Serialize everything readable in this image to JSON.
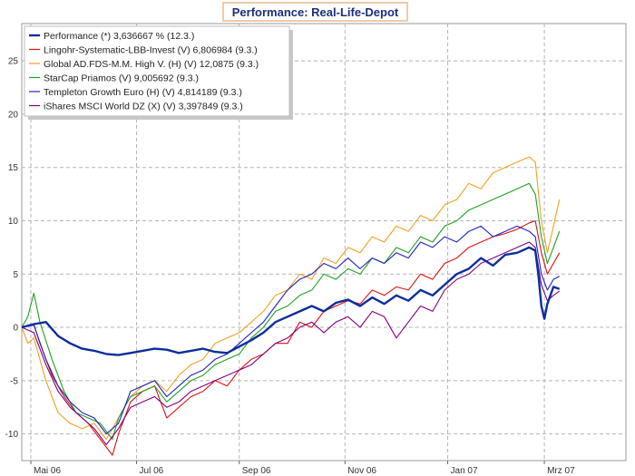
{
  "chart_data": {
    "type": "line",
    "title": "Performance: Real-Life-Depot",
    "xlabel": "",
    "ylabel": "",
    "ylim": [
      -12.5,
      28.5
    ],
    "xlim": [
      0,
      100
    ],
    "yticks": [
      -10,
      -5,
      0,
      5,
      10,
      15,
      20,
      25
    ],
    "xticks": [
      {
        "label": "Mai 06",
        "x": 1.5
      },
      {
        "label": "Jul 06",
        "x": 19.0
      },
      {
        "label": "Sep 06",
        "x": 36.0
      },
      {
        "label": "Nov 06",
        "x": 53.5
      },
      {
        "label": "Jan 07",
        "x": 70.5
      },
      {
        "label": "Mrz 07",
        "x": 86.5
      }
    ],
    "grid": true,
    "legend_position": "top-left",
    "series": [
      {
        "name": "Performance",
        "legend": "Performance (*) 3,636667 % (12.3.)",
        "color": "#0b2e9e",
        "bold": true,
        "points": [
          [
            0,
            0
          ],
          [
            2,
            0.3
          ],
          [
            4,
            0.5
          ],
          [
            6,
            -0.8
          ],
          [
            8,
            -1.5
          ],
          [
            10,
            -2.0
          ],
          [
            12,
            -2.2
          ],
          [
            14,
            -2.5
          ],
          [
            16,
            -2.6
          ],
          [
            18,
            -2.4
          ],
          [
            20,
            -2.2
          ],
          [
            22,
            -2.0
          ],
          [
            24,
            -2.1
          ],
          [
            26,
            -2.4
          ],
          [
            28,
            -2.2
          ],
          [
            30,
            -2.0
          ],
          [
            32,
            -2.3
          ],
          [
            34,
            -2.4
          ],
          [
            36,
            -1.8
          ],
          [
            38,
            -1.2
          ],
          [
            40,
            -0.5
          ],
          [
            42,
            0.5
          ],
          [
            44,
            1.0
          ],
          [
            46,
            1.5
          ],
          [
            48,
            2.0
          ],
          [
            50,
            1.5
          ],
          [
            52,
            2.3
          ],
          [
            54,
            2.6
          ],
          [
            56,
            2.0
          ],
          [
            58,
            2.8
          ],
          [
            60,
            2.2
          ],
          [
            62,
            3.0
          ],
          [
            64,
            2.5
          ],
          [
            66,
            3.5
          ],
          [
            68,
            3.0
          ],
          [
            70,
            4.0
          ],
          [
            72,
            5.0
          ],
          [
            74,
            5.5
          ],
          [
            76,
            6.5
          ],
          [
            78,
            5.8
          ],
          [
            80,
            6.8
          ],
          [
            82,
            7.0
          ],
          [
            84,
            7.5
          ],
          [
            85,
            7.2
          ],
          [
            85.5,
            5.0
          ],
          [
            86,
            2.0
          ],
          [
            86.5,
            0.8
          ],
          [
            87,
            2.2
          ],
          [
            88,
            3.8
          ],
          [
            89,
            3.6
          ]
        ]
      },
      {
        "name": "Lingohr-Systematic-LBB-Invest",
        "legend": "Lingohr-Systematic-LBB-Invest (V) 6,806984 (9.3.)",
        "color": "#e01010",
        "bold": false,
        "points": [
          [
            0,
            0
          ],
          [
            2,
            0.3
          ],
          [
            3,
            -1.5
          ],
          [
            5,
            -4.5
          ],
          [
            7,
            -6.5
          ],
          [
            9,
            -8.0
          ],
          [
            11,
            -9.0
          ],
          [
            13,
            -10.5
          ],
          [
            15,
            -12.0
          ],
          [
            16,
            -10.0
          ],
          [
            18,
            -7.0
          ],
          [
            20,
            -6.0
          ],
          [
            22,
            -5.5
          ],
          [
            24,
            -8.5
          ],
          [
            26,
            -7.5
          ],
          [
            28,
            -6.5
          ],
          [
            30,
            -6.0
          ],
          [
            32,
            -5.0
          ],
          [
            34,
            -5.5
          ],
          [
            36,
            -4.0
          ],
          [
            38,
            -3.0
          ],
          [
            40,
            -2.5
          ],
          [
            42,
            -1.5
          ],
          [
            44,
            -1.5
          ],
          [
            46,
            0.5
          ],
          [
            48,
            0.0
          ],
          [
            50,
            1.5
          ],
          [
            52,
            2.0
          ],
          [
            54,
            2.5
          ],
          [
            56,
            2.2
          ],
          [
            58,
            3.5
          ],
          [
            60,
            3.0
          ],
          [
            62,
            3.8
          ],
          [
            64,
            3.5
          ],
          [
            66,
            5.0
          ],
          [
            68,
            4.5
          ],
          [
            70,
            6.0
          ],
          [
            72,
            6.5
          ],
          [
            74,
            7.5
          ],
          [
            76,
            8.0
          ],
          [
            78,
            8.5
          ],
          [
            80,
            8.8
          ],
          [
            82,
            9.2
          ],
          [
            84,
            9.8
          ],
          [
            85,
            10.0
          ],
          [
            86,
            7.0
          ],
          [
            87,
            5.0
          ],
          [
            88,
            6.0
          ],
          [
            89,
            7.0
          ]
        ]
      },
      {
        "name": "Global AD.FDS-M.M. High V.",
        "legend": "Global AD.FDS-M.M. High V. (H) (V) 12,0875 (9.3.)",
        "color": "#f0a020",
        "bold": false,
        "points": [
          [
            0,
            0
          ],
          [
            1,
            -1.5
          ],
          [
            2,
            -1.0
          ],
          [
            4,
            -5.0
          ],
          [
            6,
            -8.0
          ],
          [
            8,
            -9.0
          ],
          [
            10,
            -9.5
          ],
          [
            12,
            -9.0
          ],
          [
            14,
            -10.5
          ],
          [
            16,
            -8.5
          ],
          [
            18,
            -6.5
          ],
          [
            20,
            -5.5
          ],
          [
            22,
            -5.0
          ],
          [
            24,
            -6.0
          ],
          [
            26,
            -4.5
          ],
          [
            28,
            -3.5
          ],
          [
            30,
            -3.0
          ],
          [
            32,
            -1.5
          ],
          [
            34,
            -1.0
          ],
          [
            36,
            -0.5
          ],
          [
            38,
            0.5
          ],
          [
            40,
            1.5
          ],
          [
            42,
            3.0
          ],
          [
            44,
            3.5
          ],
          [
            46,
            5.0
          ],
          [
            48,
            4.5
          ],
          [
            50,
            6.5
          ],
          [
            52,
            6.0
          ],
          [
            54,
            7.5
          ],
          [
            56,
            7.0
          ],
          [
            58,
            8.5
          ],
          [
            60,
            8.0
          ],
          [
            62,
            9.5
          ],
          [
            64,
            9.0
          ],
          [
            66,
            10.5
          ],
          [
            68,
            10.0
          ],
          [
            70,
            11.5
          ],
          [
            72,
            12.0
          ],
          [
            74,
            13.5
          ],
          [
            76,
            13.0
          ],
          [
            78,
            14.5
          ],
          [
            80,
            15.0
          ],
          [
            82,
            15.5
          ],
          [
            84,
            16.0
          ],
          [
            85,
            15.5
          ],
          [
            86,
            10.0
          ],
          [
            87,
            7.0
          ],
          [
            88,
            9.5
          ],
          [
            89,
            12.0
          ]
        ]
      },
      {
        "name": "StarCap Priamos",
        "legend": "StarCap Priamos (V) 9,005692 (9.3.)",
        "color": "#20a020",
        "bold": false,
        "points": [
          [
            0,
            0
          ],
          [
            1,
            1.0
          ],
          [
            2,
            3.2
          ],
          [
            3,
            0.5
          ],
          [
            5,
            -3.0
          ],
          [
            7,
            -6.0
          ],
          [
            9,
            -8.0
          ],
          [
            11,
            -8.5
          ],
          [
            13,
            -9.0
          ],
          [
            15,
            -10.5
          ],
          [
            16,
            -8.5
          ],
          [
            18,
            -6.5
          ],
          [
            20,
            -6.0
          ],
          [
            22,
            -5.5
          ],
          [
            24,
            -7.0
          ],
          [
            26,
            -6.0
          ],
          [
            28,
            -5.0
          ],
          [
            30,
            -4.5
          ],
          [
            32,
            -3.5
          ],
          [
            34,
            -3.0
          ],
          [
            36,
            -2.5
          ],
          [
            38,
            -1.0
          ],
          [
            40,
            0.0
          ],
          [
            42,
            1.5
          ],
          [
            44,
            2.0
          ],
          [
            46,
            3.0
          ],
          [
            48,
            3.5
          ],
          [
            50,
            5.0
          ],
          [
            52,
            4.5
          ],
          [
            54,
            5.5
          ],
          [
            56,
            5.0
          ],
          [
            58,
            6.5
          ],
          [
            60,
            6.0
          ],
          [
            62,
            7.5
          ],
          [
            64,
            7.0
          ],
          [
            66,
            8.5
          ],
          [
            68,
            8.0
          ],
          [
            70,
            9.5
          ],
          [
            72,
            10.0
          ],
          [
            74,
            11.0
          ],
          [
            76,
            11.5
          ],
          [
            78,
            12.0
          ],
          [
            80,
            12.5
          ],
          [
            82,
            13.0
          ],
          [
            84,
            13.5
          ],
          [
            85,
            12.5
          ],
          [
            86,
            8.5
          ],
          [
            87,
            6.0
          ],
          [
            88,
            7.5
          ],
          [
            89,
            9.0
          ]
        ]
      },
      {
        "name": "Templeton Growth Euro",
        "legend": "Templeton Growth Euro (H) (V) 4,814189 (9.3.)",
        "color": "#2020c0",
        "bold": false,
        "points": [
          [
            0,
            0
          ],
          [
            2,
            0.2
          ],
          [
            4,
            -3.0
          ],
          [
            6,
            -5.5
          ],
          [
            8,
            -7.0
          ],
          [
            10,
            -8.0
          ],
          [
            12,
            -8.5
          ],
          [
            14,
            -10.0
          ],
          [
            16,
            -9.0
          ],
          [
            18,
            -6.0
          ],
          [
            20,
            -5.5
          ],
          [
            22,
            -5.0
          ],
          [
            24,
            -6.5
          ],
          [
            26,
            -5.5
          ],
          [
            28,
            -4.5
          ],
          [
            30,
            -4.0
          ],
          [
            32,
            -3.0
          ],
          [
            34,
            -2.5
          ],
          [
            36,
            -1.5
          ],
          [
            38,
            -0.5
          ],
          [
            40,
            0.5
          ],
          [
            42,
            2.0
          ],
          [
            44,
            3.5
          ],
          [
            46,
            4.5
          ],
          [
            48,
            5.0
          ],
          [
            50,
            6.0
          ],
          [
            52,
            5.5
          ],
          [
            54,
            6.5
          ],
          [
            56,
            5.5
          ],
          [
            58,
            6.5
          ],
          [
            60,
            6.0
          ],
          [
            62,
            7.0
          ],
          [
            64,
            6.5
          ],
          [
            66,
            8.0
          ],
          [
            68,
            7.5
          ],
          [
            70,
            8.5
          ],
          [
            72,
            8.0
          ],
          [
            74,
            9.0
          ],
          [
            76,
            9.5
          ],
          [
            78,
            8.5
          ],
          [
            80,
            9.0
          ],
          [
            82,
            9.5
          ],
          [
            84,
            9.0
          ],
          [
            85,
            8.5
          ],
          [
            86,
            5.0
          ],
          [
            87,
            3.5
          ],
          [
            88,
            4.5
          ],
          [
            89,
            4.8
          ]
        ]
      },
      {
        "name": "iShares MSCI World DZ",
        "legend": "iShares MSCI World DZ (X) (V) 3,397849 (9.3.)",
        "color": "#800080",
        "bold": false,
        "points": [
          [
            0,
            0
          ],
          [
            2,
            -0.5
          ],
          [
            4,
            -3.5
          ],
          [
            6,
            -6.0
          ],
          [
            8,
            -7.5
          ],
          [
            10,
            -8.5
          ],
          [
            12,
            -9.5
          ],
          [
            14,
            -11.0
          ],
          [
            16,
            -9.5
          ],
          [
            18,
            -7.5
          ],
          [
            20,
            -7.0
          ],
          [
            22,
            -6.5
          ],
          [
            24,
            -7.5
          ],
          [
            26,
            -7.0
          ],
          [
            28,
            -6.0
          ],
          [
            30,
            -5.5
          ],
          [
            32,
            -5.0
          ],
          [
            34,
            -4.5
          ],
          [
            36,
            -4.0
          ],
          [
            38,
            -3.5
          ],
          [
            40,
            -2.5
          ],
          [
            42,
            -1.5
          ],
          [
            44,
            -1.0
          ],
          [
            46,
            0.0
          ],
          [
            48,
            0.5
          ],
          [
            50,
            -0.5
          ],
          [
            52,
            0.5
          ],
          [
            54,
            1.0
          ],
          [
            56,
            0.0
          ],
          [
            58,
            1.5
          ],
          [
            60,
            1.0
          ],
          [
            62,
            -1.0
          ],
          [
            64,
            0.5
          ],
          [
            66,
            2.0
          ],
          [
            68,
            1.5
          ],
          [
            70,
            3.5
          ],
          [
            72,
            4.5
          ],
          [
            74,
            5.0
          ],
          [
            76,
            6.0
          ],
          [
            78,
            6.5
          ],
          [
            80,
            7.0
          ],
          [
            82,
            7.5
          ],
          [
            84,
            8.0
          ],
          [
            85,
            7.5
          ],
          [
            86,
            4.0
          ],
          [
            87,
            2.5
          ],
          [
            88,
            3.0
          ],
          [
            89,
            3.4
          ]
        ]
      }
    ]
  }
}
